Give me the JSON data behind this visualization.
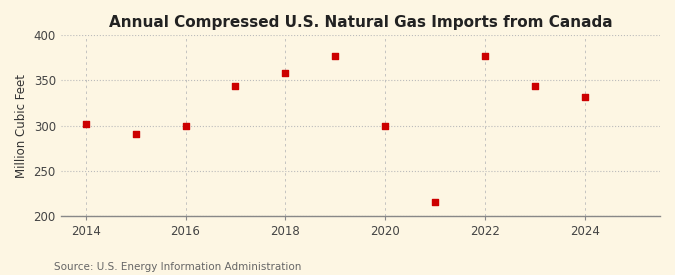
{
  "title": "Annual Compressed U.S. Natural Gas Imports from Canada",
  "ylabel": "Million Cubic Feet",
  "source": "Source: U.S. Energy Information Administration",
  "years": [
    2014,
    2015,
    2016,
    2017,
    2018,
    2019,
    2020,
    2021,
    2022,
    2023,
    2024
  ],
  "values": [
    302,
    291,
    300,
    344,
    358,
    377,
    300,
    215,
    377,
    344,
    332
  ],
  "marker_color": "#cc0000",
  "marker": "s",
  "marker_size": 4,
  "xlim": [
    2013.5,
    2025.5
  ],
  "ylim": [
    200,
    400
  ],
  "yticks": [
    200,
    250,
    300,
    350,
    400
  ],
  "xticks": [
    2014,
    2016,
    2018,
    2020,
    2022,
    2024
  ],
  "background_color": "#fdf6e3",
  "grid_color": "#bbbbbb",
  "title_fontsize": 11,
  "label_fontsize": 8.5,
  "tick_fontsize": 8.5,
  "source_fontsize": 7.5
}
